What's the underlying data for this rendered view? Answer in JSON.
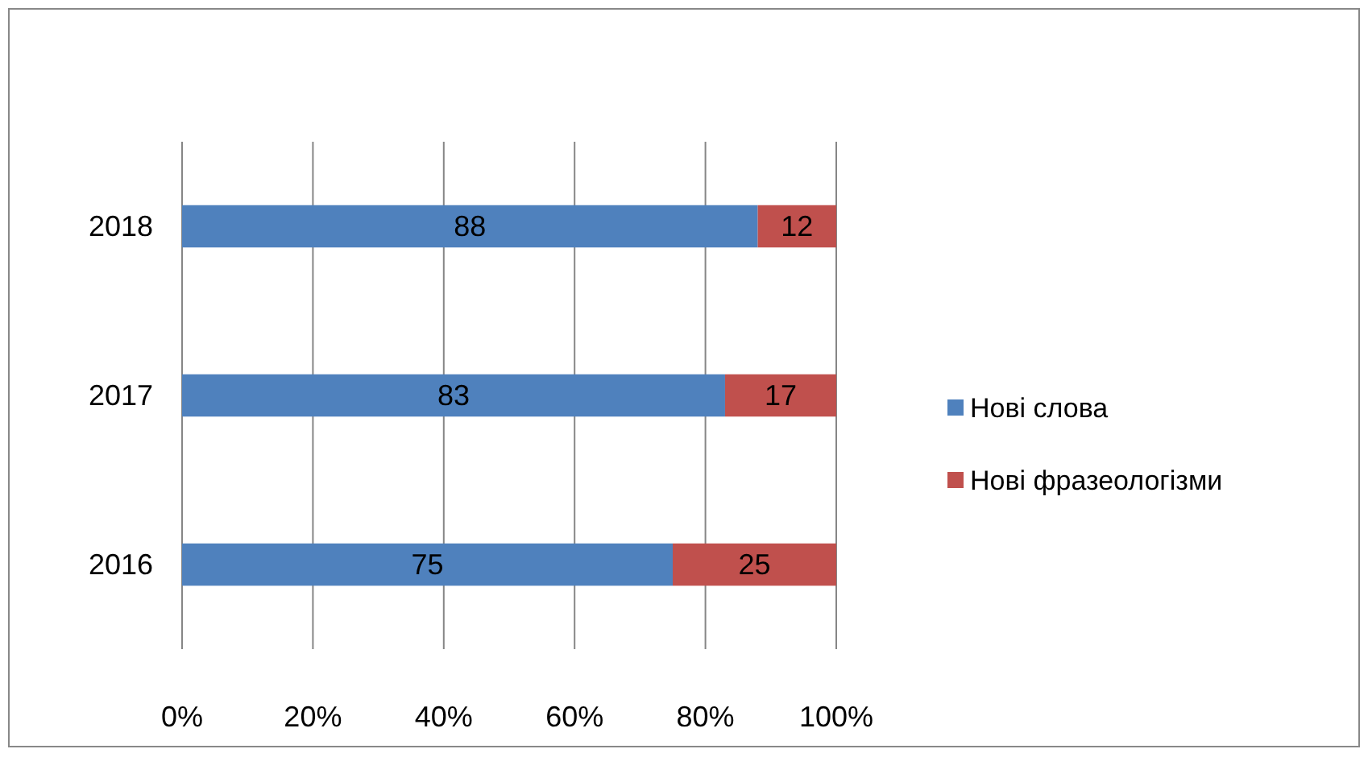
{
  "chart_data": {
    "type": "bar",
    "orientation": "horizontal",
    "stacked": true,
    "categories": [
      "2018",
      "2017",
      "2016"
    ],
    "series": [
      {
        "name": "Нові слова",
        "color": "#4f81bd",
        "values": [
          88,
          83,
          75
        ]
      },
      {
        "name": "Нові фразеологізми",
        "color": "#c0504d",
        "values": [
          12,
          17,
          25
        ]
      }
    ],
    "xlim": [
      0,
      100
    ],
    "xticks": [
      {
        "value": 0,
        "label": "0%"
      },
      {
        "value": 20,
        "label": "20%"
      },
      {
        "value": 40,
        "label": "40%"
      },
      {
        "value": 60,
        "label": "60%"
      },
      {
        "value": 80,
        "label": "80%"
      },
      {
        "value": 100,
        "label": "100%"
      }
    ],
    "grid": "x",
    "legend": "right",
    "data_labels": true
  }
}
